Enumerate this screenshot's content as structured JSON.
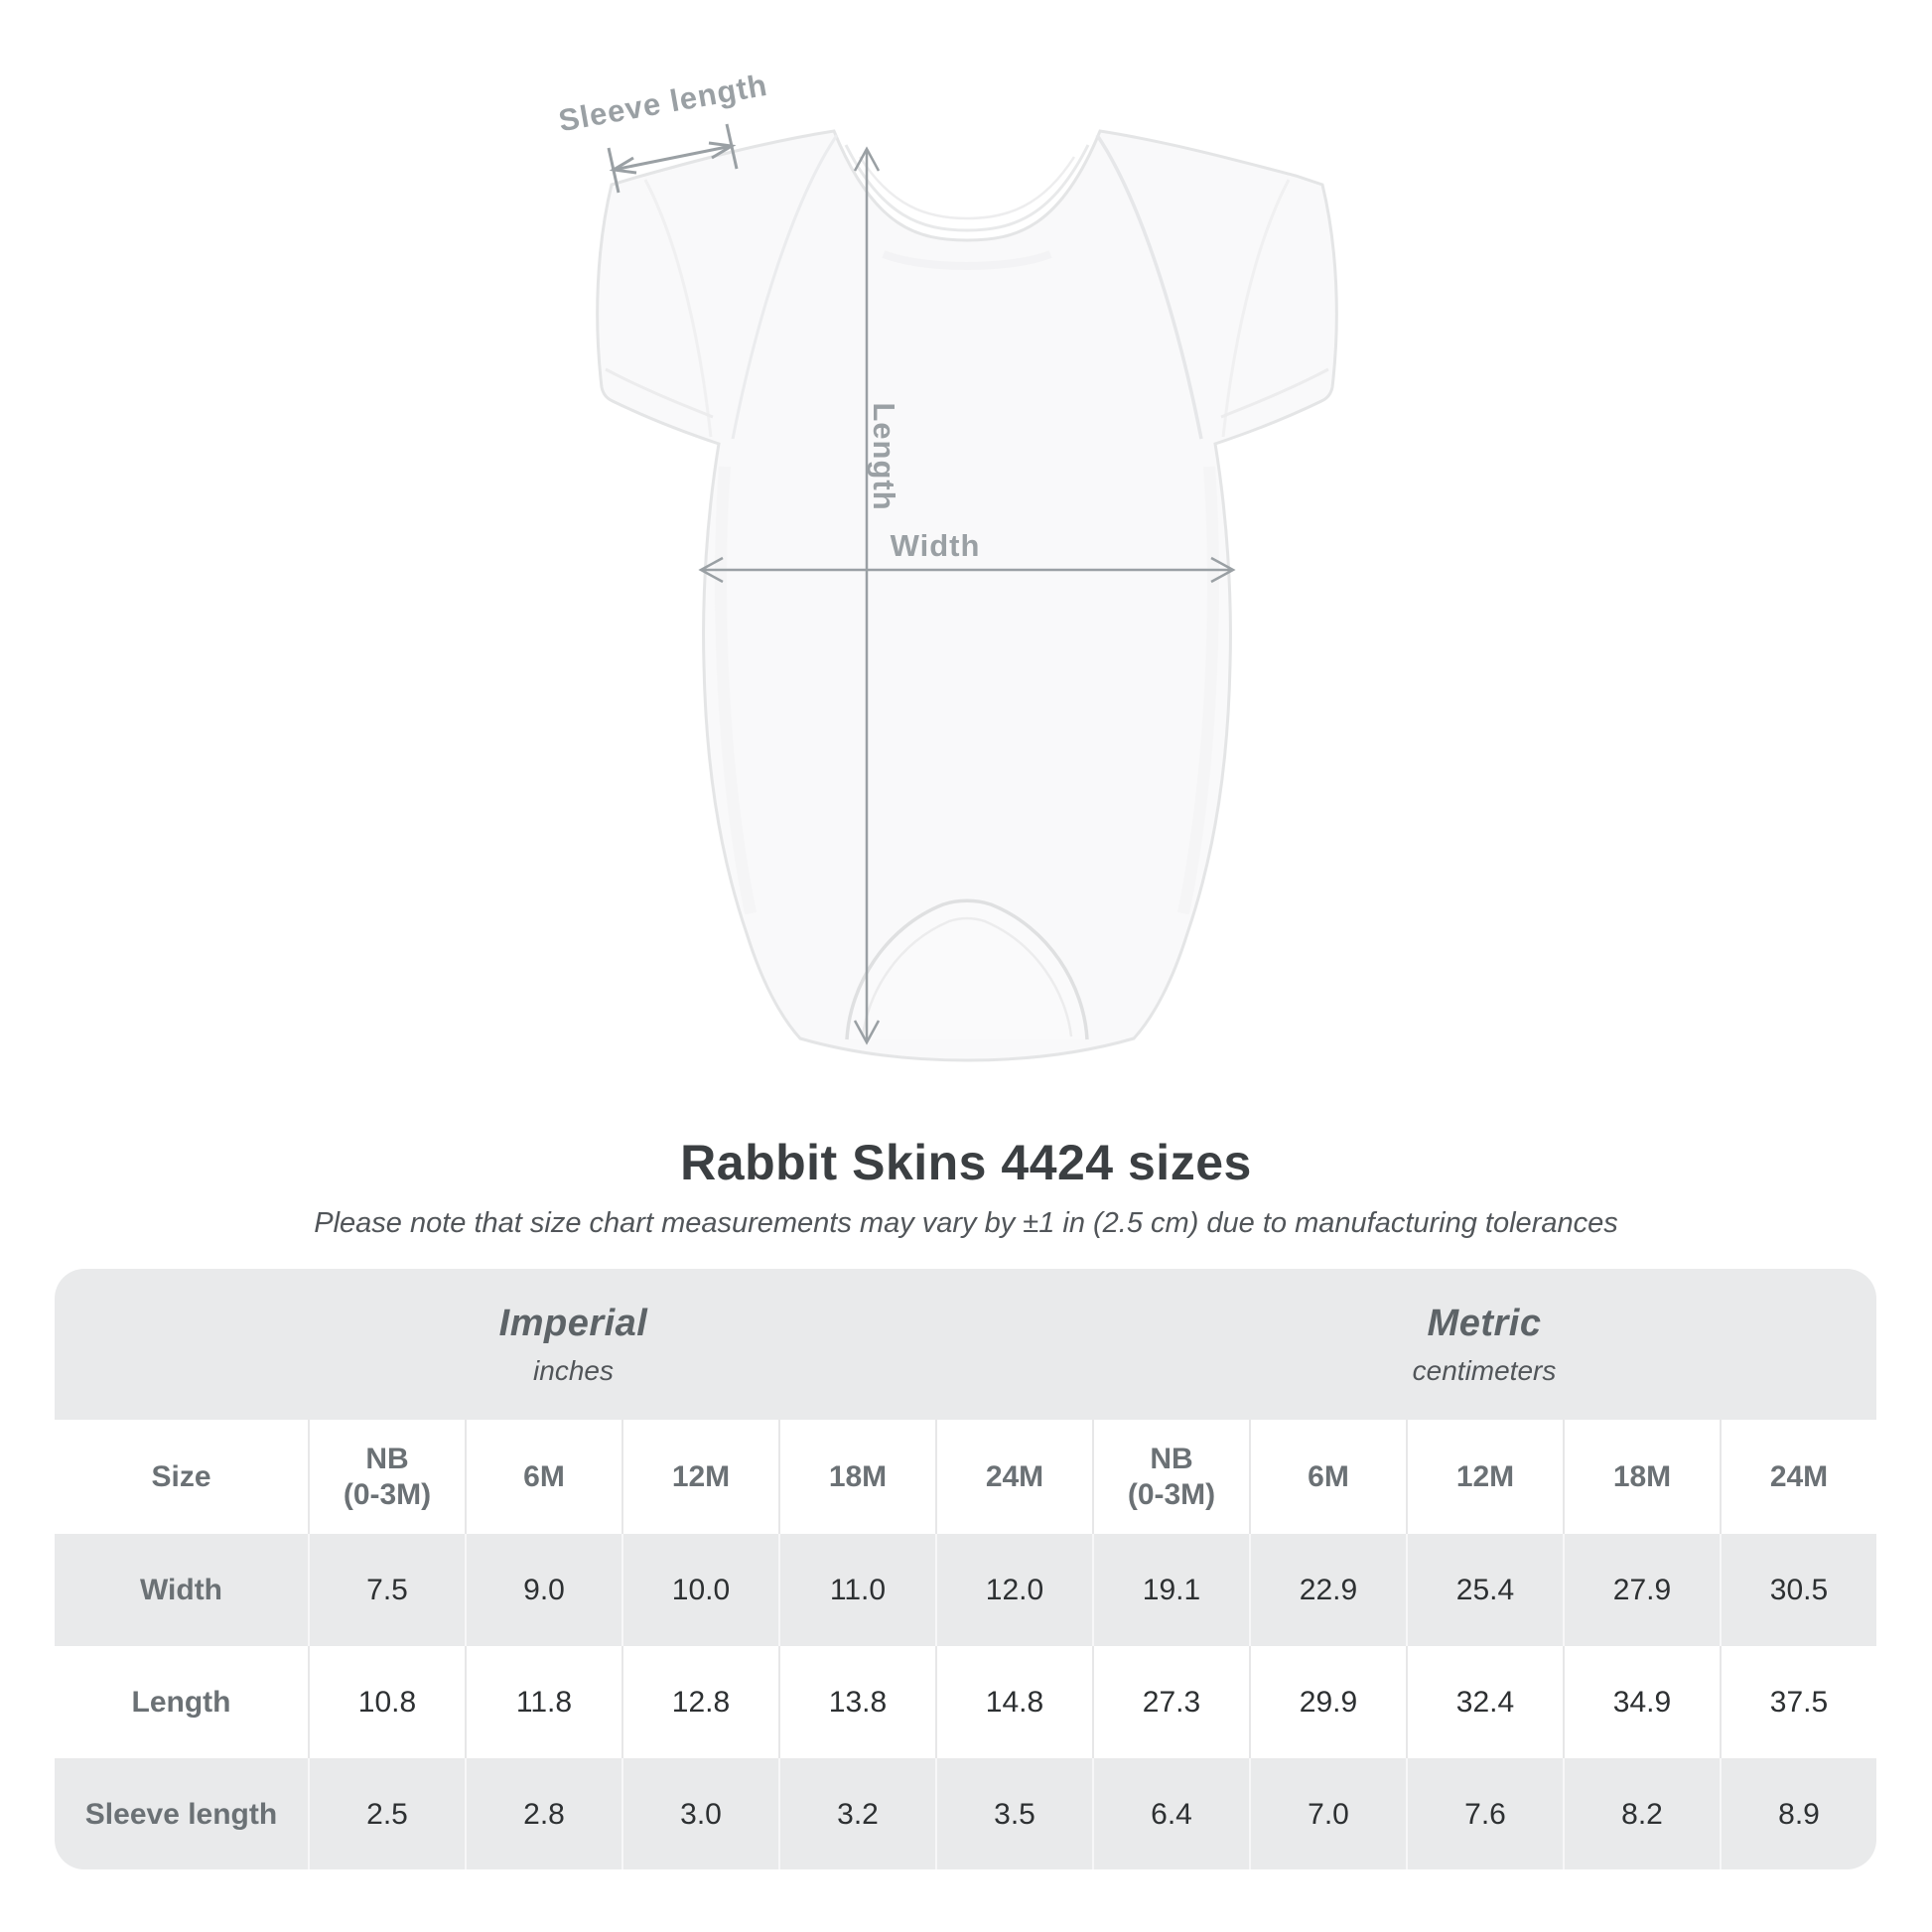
{
  "theme": {
    "background": "#ffffff",
    "annotation_color": "#9aa0a4",
    "band_gray": "#e9eaeb",
    "title_color": "#3b3f42",
    "subtitle_color": "#515559",
    "unit_title_color": "#5d6367",
    "header_text_color": "#6b7175",
    "value_text_color": "#2d3032",
    "garment_fill": "#f9f9fa",
    "garment_stroke": "#e4e5e6"
  },
  "diagram": {
    "sleeve_length_label": "Sleeve length",
    "length_label": "Length",
    "width_label": "Width"
  },
  "heading": {
    "title": "Rabbit Skins 4424 sizes",
    "subtitle": "Please note that size chart measurements may vary by ±1 in (2.5 cm) due to manufacturing tolerances"
  },
  "size_table": {
    "unit_groups": [
      {
        "name": "Imperial",
        "unit": "inches"
      },
      {
        "name": "Metric",
        "unit": "centimeters"
      }
    ],
    "columns": [
      "Size",
      "NB\n(0-3M)",
      "6M",
      "12M",
      "18M",
      "24M",
      "NB\n(0-3M)",
      "6M",
      "12M",
      "18M",
      "24M"
    ],
    "rows": [
      {
        "label": "Width",
        "values": [
          "7.5",
          "9.0",
          "10.0",
          "11.0",
          "12.0",
          "19.1",
          "22.9",
          "25.4",
          "27.9",
          "30.5"
        ]
      },
      {
        "label": "Length",
        "values": [
          "10.8",
          "11.8",
          "12.8",
          "13.8",
          "14.8",
          "27.3",
          "29.9",
          "32.4",
          "34.9",
          "37.5"
        ]
      },
      {
        "label": "Sleeve length",
        "values": [
          "2.5",
          "2.8",
          "3.0",
          "3.2",
          "3.5",
          "6.4",
          "7.0",
          "7.6",
          "8.2",
          "8.9"
        ]
      }
    ]
  }
}
